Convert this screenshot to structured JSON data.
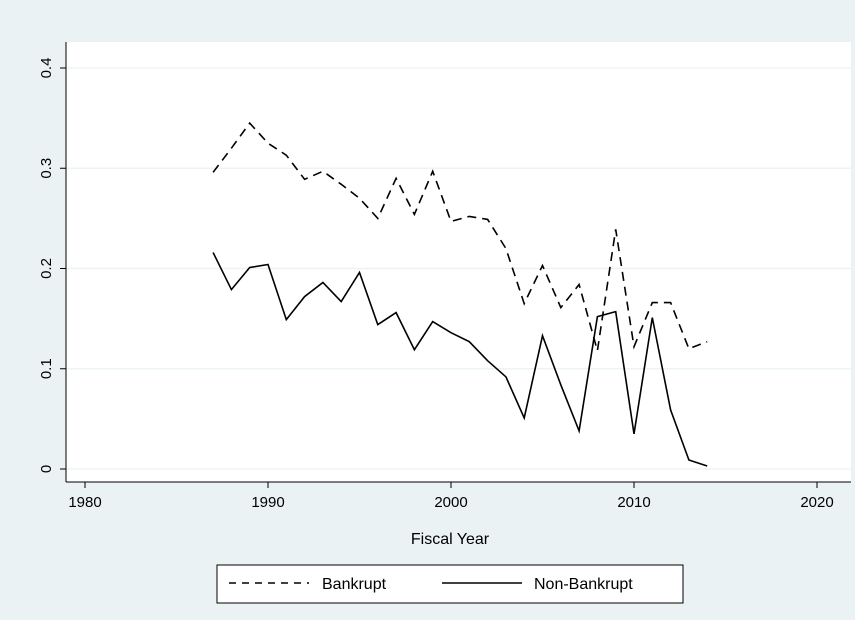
{
  "chart_data": {
    "type": "line",
    "title": "",
    "xlabel": "Fiscal Year",
    "ylabel": "",
    "xlim": [
      1980,
      2020
    ],
    "ylim": [
      0,
      0.4
    ],
    "xticks": [
      1980,
      1990,
      2000,
      2010,
      2020
    ],
    "yticks": [
      0,
      0.1,
      0.2,
      0.3,
      0.4
    ],
    "xtick_labels": [
      "1980",
      "1990",
      "2000",
      "2010",
      "2020"
    ],
    "ytick_labels": [
      "0",
      "0.1",
      "0.2",
      "0.3",
      "0.4"
    ],
    "grid": "horizontal",
    "legend_position": "bottom",
    "x": [
      1987,
      1988,
      1989,
      1990,
      1991,
      1992,
      1993,
      1994,
      1995,
      1996,
      1997,
      1998,
      1999,
      2000,
      2001,
      2002,
      2003,
      2004,
      2005,
      2006,
      2007,
      2008,
      2009,
      2010,
      2011,
      2012,
      2013,
      2014
    ],
    "series": [
      {
        "name": "Bankrupt",
        "style": "dashed",
        "color": "#000000",
        "values": [
          0.296,
          0.32,
          0.345,
          0.325,
          0.313,
          0.289,
          0.297,
          0.284,
          0.27,
          0.25,
          0.29,
          0.254,
          0.297,
          0.247,
          0.252,
          0.249,
          0.22,
          0.165,
          0.203,
          0.161,
          0.184,
          0.118,
          0.239,
          0.122,
          0.166,
          0.166,
          0.12,
          0.127
        ]
      },
      {
        "name": "Non-Bankrupt",
        "style": "solid",
        "color": "#000000",
        "values": [
          0.216,
          0.179,
          0.201,
          0.204,
          0.149,
          0.172,
          0.186,
          0.167,
          0.196,
          0.144,
          0.156,
          0.119,
          0.147,
          0.136,
          0.127,
          0.108,
          0.092,
          0.051,
          0.133,
          0.084,
          0.038,
          0.152,
          0.157,
          0.035,
          0.151,
          0.059,
          0.009,
          0.003
        ]
      }
    ]
  }
}
